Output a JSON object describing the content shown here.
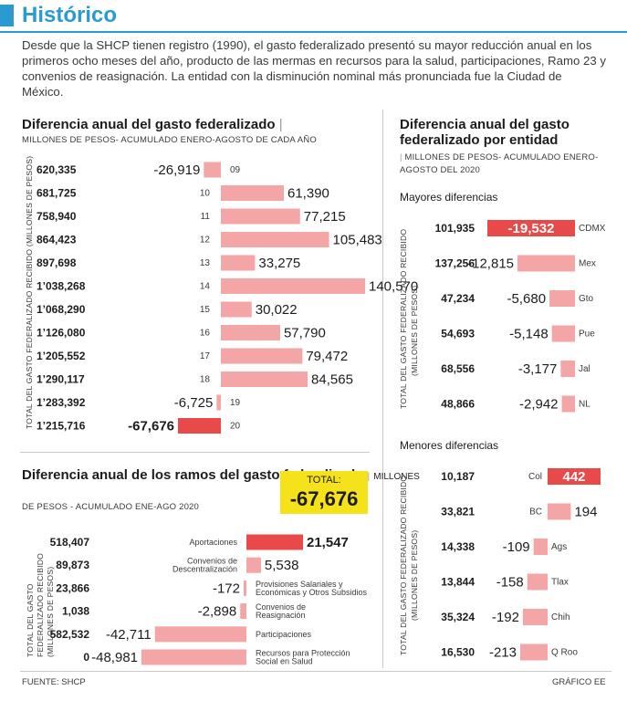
{
  "header": {
    "title": "Histórico",
    "intro": "Desde que la SHCP tienen registro (1990), el gasto federalizado presentó su mayor reducción anual en los primeros ocho meses del año, producto de las mermas en recursos para la salud, participaciones, Ramo 23 y convenios de reasignación. La entidad con la disminución nominal más pronunciada fue la Ciudad de México."
  },
  "colors": {
    "accent_blue": "#2a9bd1",
    "bar_pink": "#f4a6a6",
    "bar_red": "#e84a4a",
    "total_yellow": "#f5e21b"
  },
  "chart_data": [
    {
      "type": "bar",
      "title": "Diferencia anual del gasto federalizado",
      "subtitle": "MILLONES DE PESOS- ACUMULADO ENERO-AGOSTO DE CADA AÑO",
      "ylabel": "TOTAL DEL GASTO FEDERALIZADO RECIBIDO (MILLONES DE PESOS)",
      "categories": [
        "09",
        "10",
        "11",
        "12",
        "13",
        "14",
        "15",
        "16",
        "17",
        "18",
        "19",
        "20"
      ],
      "totals": [
        "620,335",
        "681,725",
        "758,940",
        "864,423",
        "897,698",
        "1’038,268",
        "1’068,290",
        "1’126,080",
        "1’205,552",
        "1’290,117",
        "1’283,392",
        "1’215,716"
      ],
      "values": [
        -26919,
        61390,
        77215,
        105483,
        33275,
        140570,
        30022,
        57790,
        79472,
        84565,
        -6725,
        -67676
      ],
      "value_labels": [
        "-26,919",
        "61,390",
        "77,215",
        "105,483",
        "33,275",
        "140,570",
        "30,022",
        "57,790",
        "79,472",
        "84,565",
        "-6,725",
        "-67,676"
      ],
      "highlight": "20"
    },
    {
      "type": "bar",
      "title": "Diferencia anual de los ramos del gasto federalizado",
      "subtitle_rest": "MILLONES",
      "subtitle": "DE PESOS - ACUMULADO ENE-AGO 2020",
      "ylabel_line1": "TOTAL DEL GASTO",
      "ylabel_line2": "FEDERALIZADO RECIBIDO",
      "ylabel_line3": "(MILLONES DE PESOS)",
      "categories": [
        "Aportaciones",
        "Convenios de|Descentralización",
        "Provisiones Salariales y|Económicas y Otros Subsidios",
        "Convenios de|Reasignación",
        "Participaciones",
        "Recursos para Protección|Social en Salud"
      ],
      "totals": [
        "518,407",
        "89,873",
        "23,866",
        "1,038",
        "582,532",
        "0"
      ],
      "values": [
        21547,
        5538,
        -172,
        -2898,
        -42711,
        -48981
      ],
      "value_labels": [
        "21,547",
        "5,538",
        "-172",
        "-2,898",
        "-42,711",
        "-48,981"
      ],
      "highlight": "Aportaciones"
    },
    {
      "type": "bar",
      "title": "Diferencia anual del gasto federalizado por entidad",
      "subtitle": "MILLONES DE PESOS- ACUMULADO ENERO-AGOSTO DEL 2020",
      "group": "Mayores diferencias",
      "ylabel_line1": "TOTAL DEL GASTO FEDERALIZADO RECIBIDO",
      "ylabel_line2": "(MILLONES DE PESOS)",
      "categories": [
        "CDMX",
        "Mex",
        "Gto",
        "Pue",
        "Jal",
        "NL"
      ],
      "totals": [
        "101,935",
        "137,256",
        "47,234",
        "54,693",
        "68,556",
        "48,866"
      ],
      "values": [
        -19532,
        -12815,
        -5680,
        -5148,
        -3177,
        -2942
      ],
      "value_labels": [
        "-19,532",
        "-12,815",
        "-5,680",
        "-5,148",
        "-3,177",
        "-2,942"
      ],
      "highlight": "CDMX"
    },
    {
      "type": "bar",
      "group": "Menores diferencias",
      "ylabel_line1": "TOTAL DEL GASTO FEDERALIZADO RECIBIDO",
      "ylabel_line2": "(MILLONES DE PESOS)",
      "categories": [
        "Col",
        "BC",
        "Ags",
        "Tlax",
        "Chih",
        "Q Roo"
      ],
      "totals": [
        "10,187",
        "33,821",
        "14,338",
        "13,844",
        "35,324",
        "16,530"
      ],
      "values": [
        442,
        194,
        -109,
        -158,
        -192,
        -213
      ],
      "value_labels": [
        "442",
        "194",
        "-109",
        "-158",
        "-192",
        "-213"
      ],
      "highlight": "Col"
    }
  ],
  "total": {
    "label": "TOTAL:",
    "value": "-67,676"
  },
  "footer": {
    "source": "FUENTE: SHCP",
    "credit": "GRÁFICO EE"
  }
}
